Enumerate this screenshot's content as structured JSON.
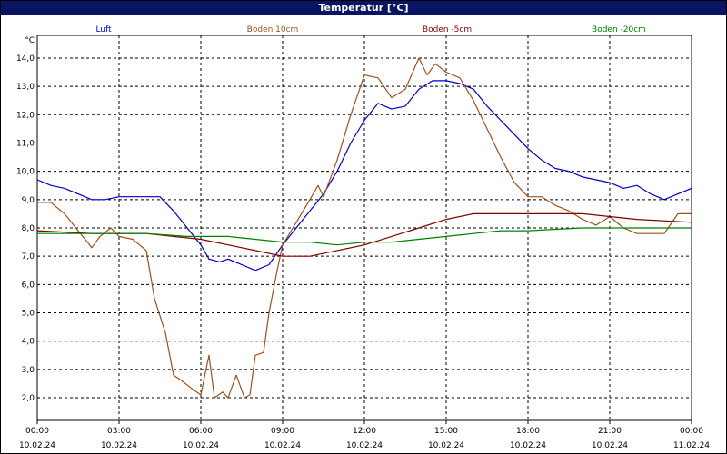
{
  "chart_data": {
    "type": "line",
    "title": "Temperatur [°C]",
    "y_unit": "°C",
    "ylim": [
      1.2,
      14.8
    ],
    "y_ticks": [
      "2,0",
      "3,0",
      "4,0",
      "5,0",
      "6,0",
      "7,0",
      "8,0",
      "9,0",
      "10,0",
      "11,0",
      "12,0",
      "13,0",
      "14,0"
    ],
    "y_tick_values": [
      2,
      3,
      4,
      5,
      6,
      7,
      8,
      9,
      10,
      11,
      12,
      13,
      14
    ],
    "x_hours_range": [
      0,
      24
    ],
    "x_ticks": [
      {
        "time": "00:00",
        "date": "10.02.24"
      },
      {
        "time": "03:00",
        "date": "10.02.24"
      },
      {
        "time": "06:00",
        "date": "10.02.24"
      },
      {
        "time": "09:00",
        "date": "10.02.24"
      },
      {
        "time": "12:00",
        "date": "10.02.24"
      },
      {
        "time": "15:00",
        "date": "10.02.24"
      },
      {
        "time": "18:00",
        "date": "10.02.24"
      },
      {
        "time": "21:00",
        "date": "10.02.24"
      },
      {
        "time": "00:00",
        "date": "11.02.24"
      }
    ],
    "grid": true,
    "legend_placement": "top",
    "series": [
      {
        "name": "Luft",
        "color": "#0000cc",
        "points": [
          [
            0,
            9.7
          ],
          [
            0.5,
            9.5
          ],
          [
            1,
            9.4
          ],
          [
            1.5,
            9.2
          ],
          [
            2,
            9.0
          ],
          [
            2.5,
            9.0
          ],
          [
            3,
            9.1
          ],
          [
            4,
            9.1
          ],
          [
            4.5,
            9.1
          ],
          [
            5,
            8.6
          ],
          [
            5.5,
            8.0
          ],
          [
            6,
            7.4
          ],
          [
            6.3,
            6.9
          ],
          [
            6.7,
            6.8
          ],
          [
            7,
            6.9
          ],
          [
            7.5,
            6.7
          ],
          [
            8,
            6.5
          ],
          [
            8.5,
            6.7
          ],
          [
            9,
            7.4
          ],
          [
            9.5,
            8.0
          ],
          [
            10,
            8.6
          ],
          [
            10.5,
            9.2
          ],
          [
            11,
            10.0
          ],
          [
            11.5,
            11.0
          ],
          [
            12,
            11.8
          ],
          [
            12.5,
            12.4
          ],
          [
            13,
            12.2
          ],
          [
            13.5,
            12.3
          ],
          [
            14,
            12.9
          ],
          [
            14.5,
            13.2
          ],
          [
            15,
            13.2
          ],
          [
            15.5,
            13.1
          ],
          [
            16,
            12.9
          ],
          [
            16.5,
            12.3
          ],
          [
            17,
            11.8
          ],
          [
            17.5,
            11.3
          ],
          [
            18,
            10.8
          ],
          [
            18.5,
            10.4
          ],
          [
            19,
            10.1
          ],
          [
            19.5,
            10.0
          ],
          [
            20,
            9.8
          ],
          [
            20.5,
            9.7
          ],
          [
            21,
            9.6
          ],
          [
            21.5,
            9.4
          ],
          [
            22,
            9.5
          ],
          [
            22.5,
            9.2
          ],
          [
            23,
            9.0
          ],
          [
            23.5,
            9.2
          ],
          [
            24,
            9.4
          ]
        ]
      },
      {
        "name": "Boden 10cm",
        "color": "#a0501e",
        "points": [
          [
            0,
            8.9
          ],
          [
            0.5,
            8.9
          ],
          [
            1,
            8.5
          ],
          [
            1.5,
            7.9
          ],
          [
            2,
            7.3
          ],
          [
            2.3,
            7.7
          ],
          [
            2.7,
            8.0
          ],
          [
            3,
            7.7
          ],
          [
            3.5,
            7.6
          ],
          [
            4,
            7.2
          ],
          [
            4.3,
            5.5
          ],
          [
            4.7,
            4.3
          ],
          [
            5,
            2.8
          ],
          [
            5.3,
            2.6
          ],
          [
            5.7,
            2.3
          ],
          [
            6,
            2.1
          ],
          [
            6.3,
            3.5
          ],
          [
            6.5,
            2.0
          ],
          [
            6.8,
            2.2
          ],
          [
            7,
            2.0
          ],
          [
            7.3,
            2.8
          ],
          [
            7.6,
            2.0
          ],
          [
            7.8,
            2.1
          ],
          [
            8,
            3.5
          ],
          [
            8.3,
            3.6
          ],
          [
            8.5,
            5.0
          ],
          [
            8.8,
            6.5
          ],
          [
            9,
            7.4
          ],
          [
            9.5,
            8.2
          ],
          [
            10,
            9.0
          ],
          [
            10.3,
            9.5
          ],
          [
            10.5,
            9.1
          ],
          [
            11,
            10.4
          ],
          [
            11.5,
            12.0
          ],
          [
            12,
            13.4
          ],
          [
            12.5,
            13.3
          ],
          [
            13,
            12.6
          ],
          [
            13.5,
            12.9
          ],
          [
            14,
            14.0
          ],
          [
            14.3,
            13.4
          ],
          [
            14.6,
            13.8
          ],
          [
            15,
            13.5
          ],
          [
            15.5,
            13.3
          ],
          [
            16,
            12.5
          ],
          [
            16.5,
            11.5
          ],
          [
            17,
            10.5
          ],
          [
            17.5,
            9.6
          ],
          [
            18,
            9.1
          ],
          [
            18.5,
            9.1
          ],
          [
            19,
            8.8
          ],
          [
            19.5,
            8.6
          ],
          [
            20,
            8.3
          ],
          [
            20.5,
            8.1
          ],
          [
            21,
            8.4
          ],
          [
            21.5,
            8.0
          ],
          [
            22,
            7.8
          ],
          [
            22.5,
            7.8
          ],
          [
            23,
            7.8
          ],
          [
            23.5,
            8.5
          ],
          [
            24,
            8.5
          ]
        ]
      },
      {
        "name": "Boden -5cm",
        "color": "#800000",
        "points": [
          [
            0,
            7.9
          ],
          [
            2,
            7.8
          ],
          [
            4,
            7.8
          ],
          [
            5,
            7.7
          ],
          [
            6,
            7.6
          ],
          [
            7,
            7.4
          ],
          [
            8,
            7.2
          ],
          [
            9,
            7.0
          ],
          [
            10,
            7.0
          ],
          [
            11,
            7.2
          ],
          [
            12,
            7.4
          ],
          [
            13,
            7.7
          ],
          [
            14,
            8.0
          ],
          [
            15,
            8.3
          ],
          [
            16,
            8.5
          ],
          [
            18,
            8.5
          ],
          [
            20,
            8.5
          ],
          [
            21,
            8.4
          ],
          [
            22,
            8.3
          ],
          [
            24,
            8.2
          ]
        ]
      },
      {
        "name": "Boden -20cm",
        "color": "#008000",
        "points": [
          [
            0,
            7.8
          ],
          [
            2,
            7.8
          ],
          [
            4,
            7.8
          ],
          [
            5.5,
            7.7
          ],
          [
            7,
            7.7
          ],
          [
            8,
            7.6
          ],
          [
            9,
            7.5
          ],
          [
            10,
            7.5
          ],
          [
            11,
            7.4
          ],
          [
            12,
            7.5
          ],
          [
            13,
            7.5
          ],
          [
            14,
            7.6
          ],
          [
            15,
            7.7
          ],
          [
            16,
            7.8
          ],
          [
            17,
            7.9
          ],
          [
            18,
            7.9
          ],
          [
            20,
            8.0
          ],
          [
            22,
            8.0
          ],
          [
            24,
            8.0
          ]
        ]
      }
    ]
  }
}
